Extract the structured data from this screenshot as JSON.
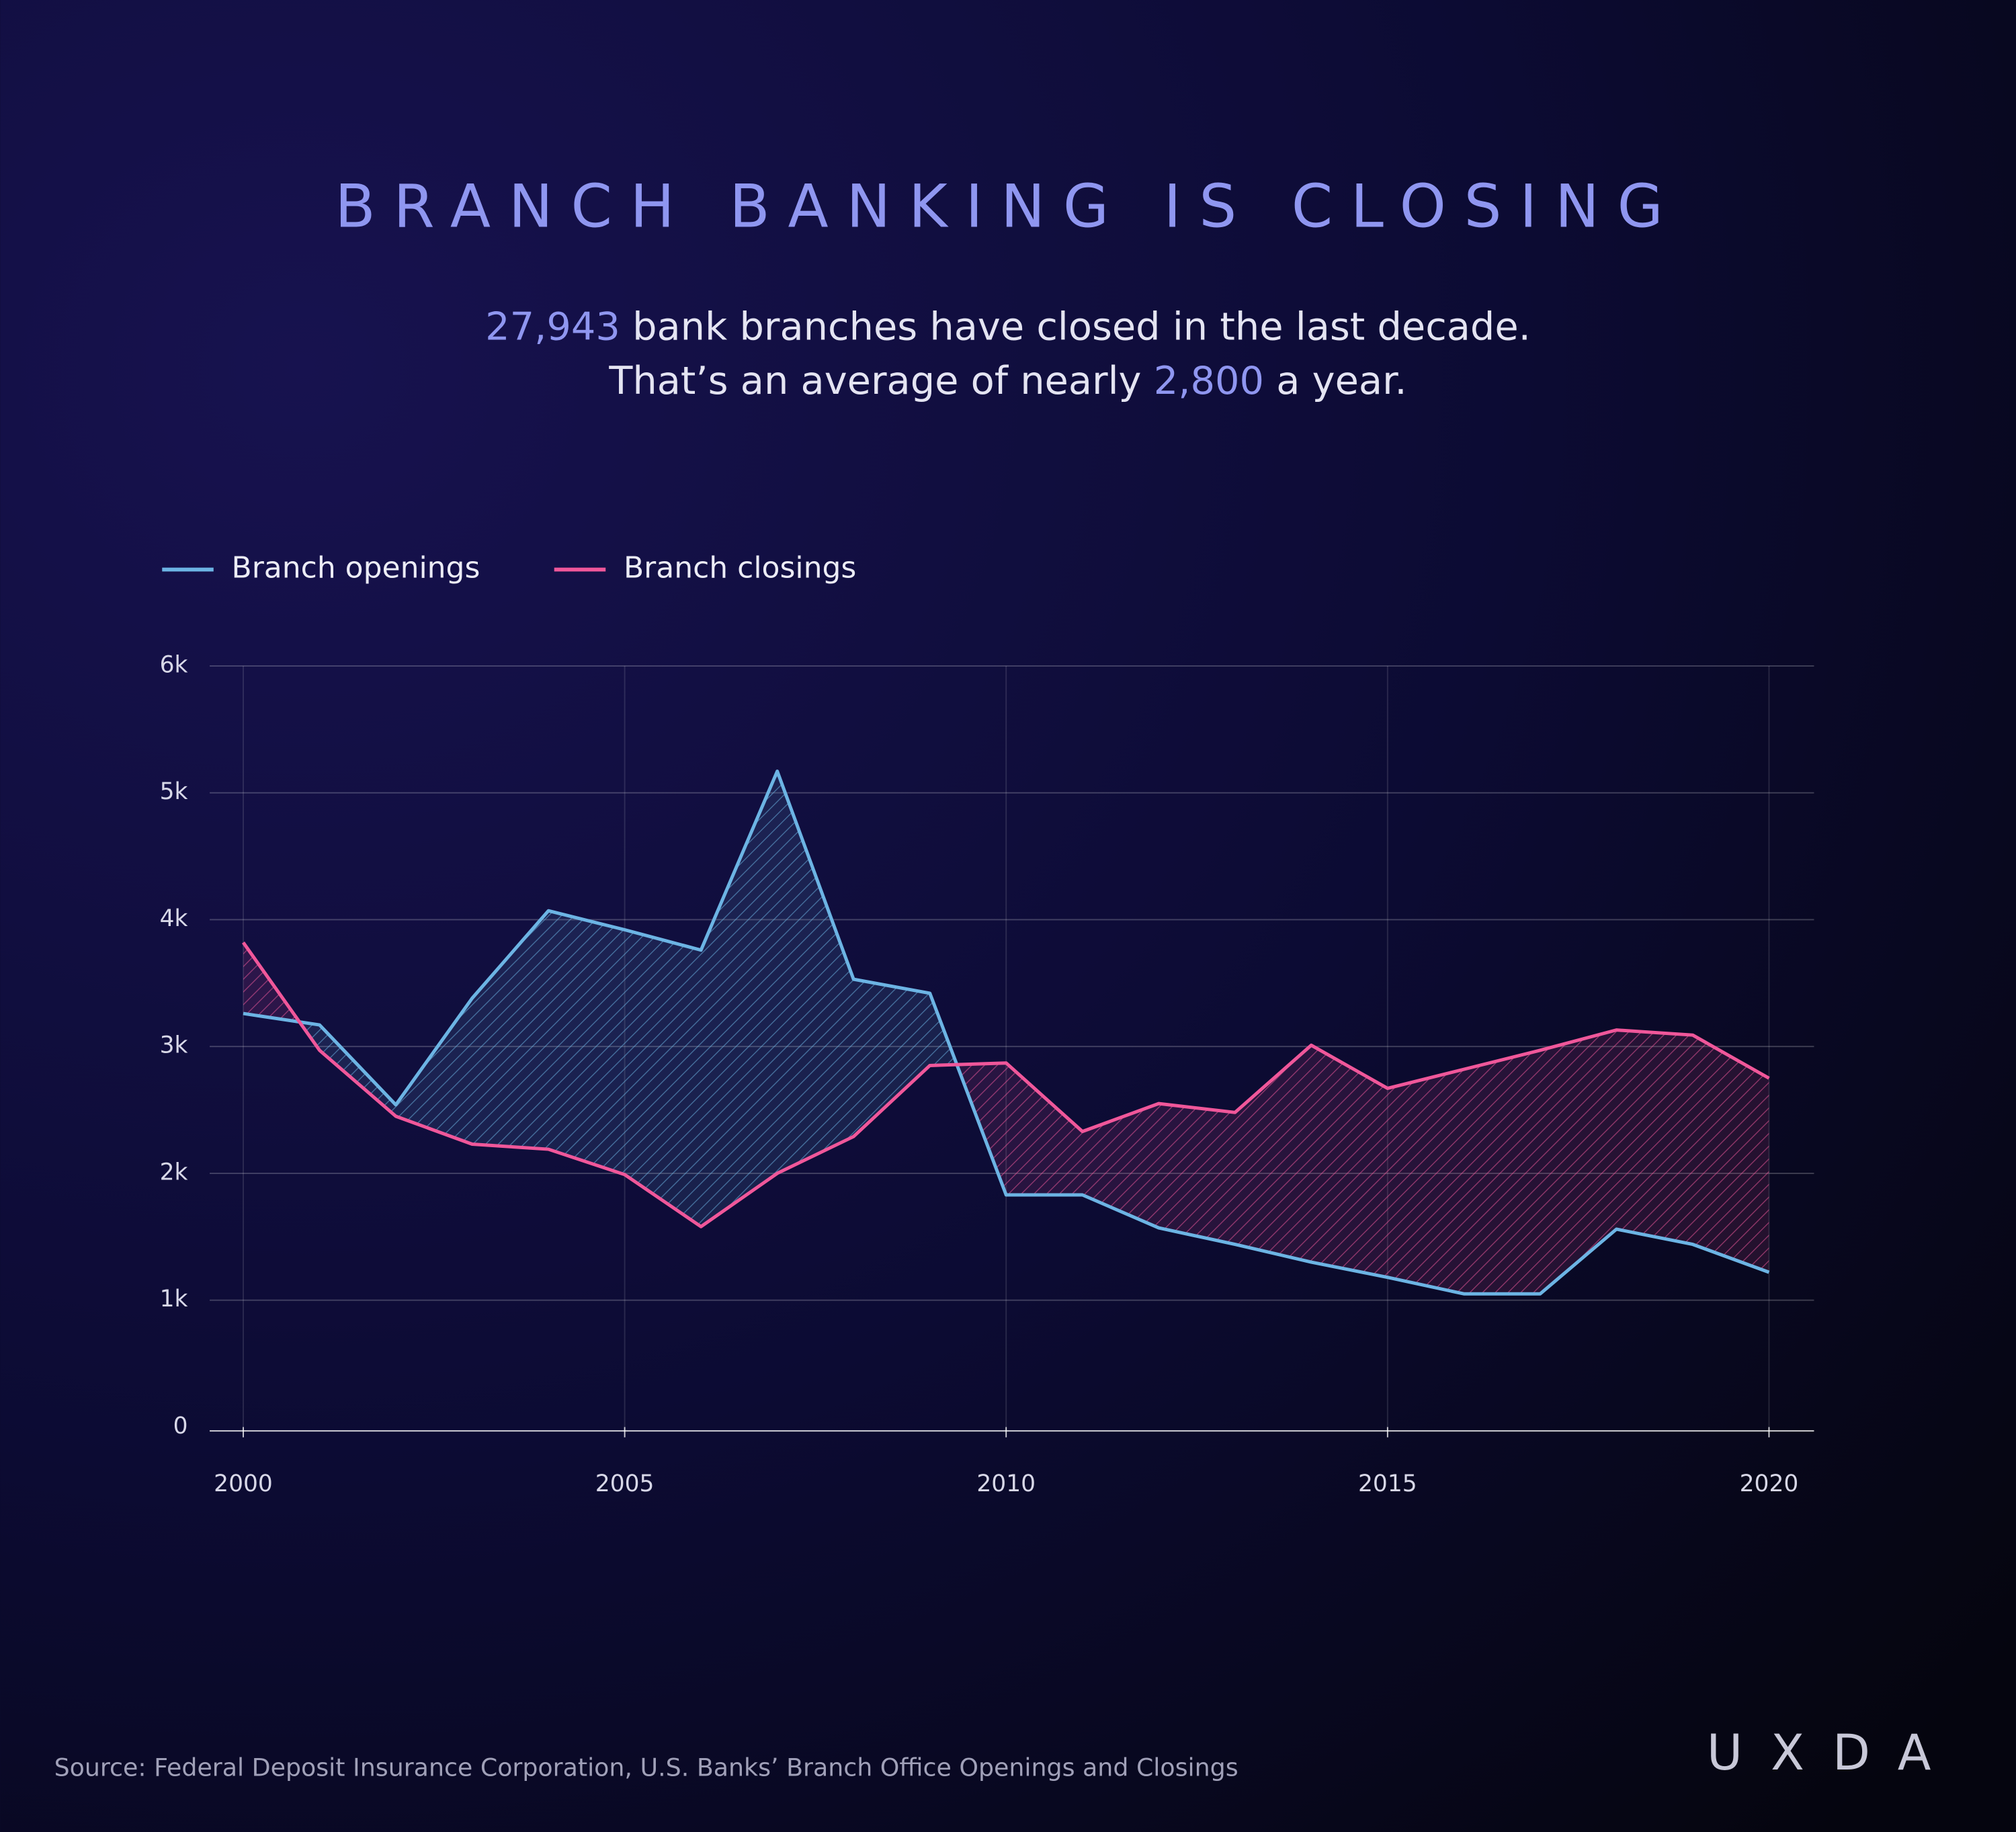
{
  "chart_data": {
    "type": "line",
    "title": "BRANCH BANKING IS CLOSING",
    "subtitle_lines": [
      [
        {
          "text": "27,943",
          "highlight": true
        },
        {
          "text": " bank branches have closed in the last decade.",
          "highlight": false
        }
      ],
      [
        {
          "text": "That’s an average of nearly ",
          "highlight": false
        },
        {
          "text": "2,800",
          "highlight": true
        },
        {
          "text": " a year.",
          "highlight": false
        }
      ]
    ],
    "x": [
      2000,
      2001,
      2002,
      2003,
      2004,
      2005,
      2006,
      2007,
      2008,
      2009,
      2010,
      2011,
      2012,
      2013,
      2014,
      2015,
      2016,
      2017,
      2018,
      2019,
      2020
    ],
    "series": [
      {
        "name": "Branch openings",
        "color": "#6cb4e4",
        "values": [
          3260,
          3170,
          2540,
          3380,
          4070,
          3920,
          3760,
          5170,
          3530,
          3420,
          1830,
          1830,
          1570,
          1440,
          1300,
          1180,
          1050,
          1050,
          1560,
          1440,
          1220
        ]
      },
      {
        "name": "Branch closings",
        "color": "#f0579a",
        "values": [
          3820,
          2970,
          2450,
          2230,
          2190,
          1990,
          1580,
          2000,
          2290,
          2850,
          2870,
          2330,
          2550,
          2480,
          3010,
          2670,
          2820,
          2970,
          3130,
          3090,
          2750
        ]
      }
    ],
    "xlim": [
      1999.56,
      2020.59
    ],
    "xticks": [
      2000,
      2005,
      2010,
      2015,
      2020
    ],
    "ylim": [
      0,
      6000
    ],
    "yticks": [
      0,
      {
        "value": 1000,
        "label": "1k"
      },
      {
        "value": 2000,
        "label": "2k"
      },
      {
        "value": 3000,
        "label": "3k"
      },
      {
        "value": 4000,
        "label": "4k"
      },
      {
        "value": 5000,
        "label": "5k"
      },
      {
        "value": 6000,
        "label": "6k"
      }
    ],
    "grid": true,
    "legend": "top-left",
    "source": "Source: Federal Deposit Insurance Corporation, U.S. Banks’ Branch Office Openings and Closings",
    "logo": "UXDA"
  }
}
